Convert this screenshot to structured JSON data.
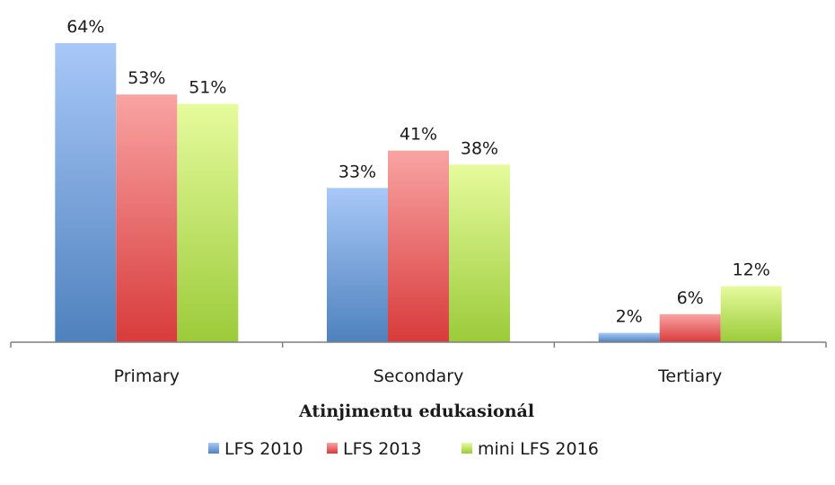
{
  "chart_data": {
    "type": "bar",
    "title": "",
    "xlabel": "Atinjimentu edukasionál",
    "ylabel": "",
    "categories": [
      "Primary",
      "Secondary",
      "Tertiary"
    ],
    "ylim": [
      0,
      64
    ],
    "grid": false,
    "legend_position": "bottom",
    "series": [
      {
        "name": "LFS 2010",
        "values": [
          64,
          33,
          2
        ],
        "labels": [
          "64%",
          "33%",
          "2%"
        ],
        "color": "#4f81bd",
        "color_light": "#a8c8f8"
      },
      {
        "name": "LFS 2013",
        "values": [
          53,
          41,
          6
        ],
        "labels": [
          "53%",
          "41%",
          "6%"
        ],
        "color": "#d83b3b",
        "color_light": "#f9a3a3"
      },
      {
        "name": "mini LFS 2016",
        "values": [
          51,
          38,
          12
        ],
        "labels": [
          "51%",
          "38%",
          "12%"
        ],
        "color": "#9bcb3a",
        "color_light": "#e6fb9c"
      }
    ]
  }
}
